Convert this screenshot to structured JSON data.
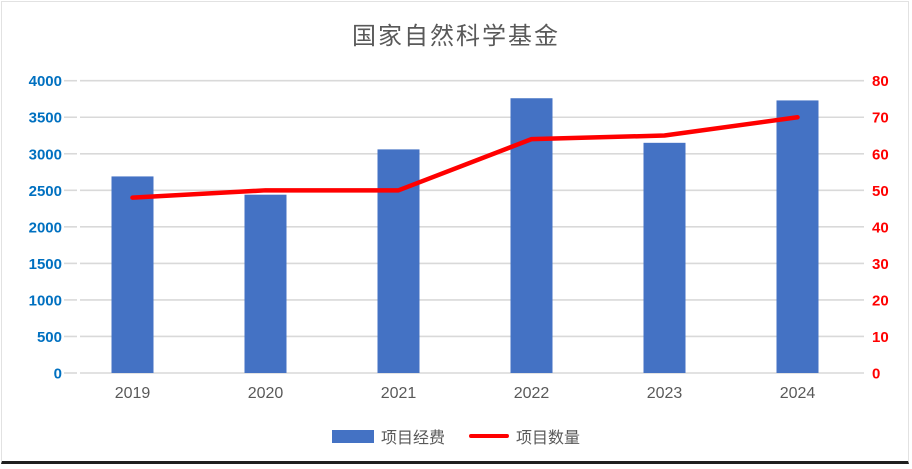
{
  "title": "国家自然科学基金",
  "legend": {
    "bar_label": "项目经费",
    "line_label": "项目数量"
  },
  "colors": {
    "bar": "#4472C4",
    "line": "#FF0000",
    "left_axis_labels": "#0070C0",
    "right_axis_labels": "#FF0000",
    "title_text": "#595959",
    "category_labels": "#595959",
    "gridline": "#D9D9D9"
  },
  "chart_data": {
    "type": "bar",
    "subtype": "combo-bar-line-dual-axis",
    "title": "国家自然科学基金",
    "categories": [
      "2019",
      "2020",
      "2021",
      "2022",
      "2023",
      "2024"
    ],
    "series": [
      {
        "name": "项目经费",
        "type": "bar",
        "axis": "left",
        "values": [
          2690,
          2440,
          3060,
          3760,
          3150,
          3730
        ]
      },
      {
        "name": "项目数量",
        "type": "line",
        "axis": "right",
        "values": [
          48,
          50,
          50,
          64,
          65,
          70
        ]
      }
    ],
    "left_axis": {
      "min": 0,
      "max": 4000,
      "step": 500,
      "ticks": [
        "0",
        "500",
        "1000",
        "1500",
        "2000",
        "2500",
        "3000",
        "3500",
        "4000"
      ]
    },
    "right_axis": {
      "min": 0,
      "max": 80,
      "step": 10,
      "ticks": [
        "0",
        "10",
        "20",
        "30",
        "40",
        "50",
        "60",
        "70",
        "80"
      ]
    },
    "grid": true,
    "legend_position": "bottom"
  }
}
